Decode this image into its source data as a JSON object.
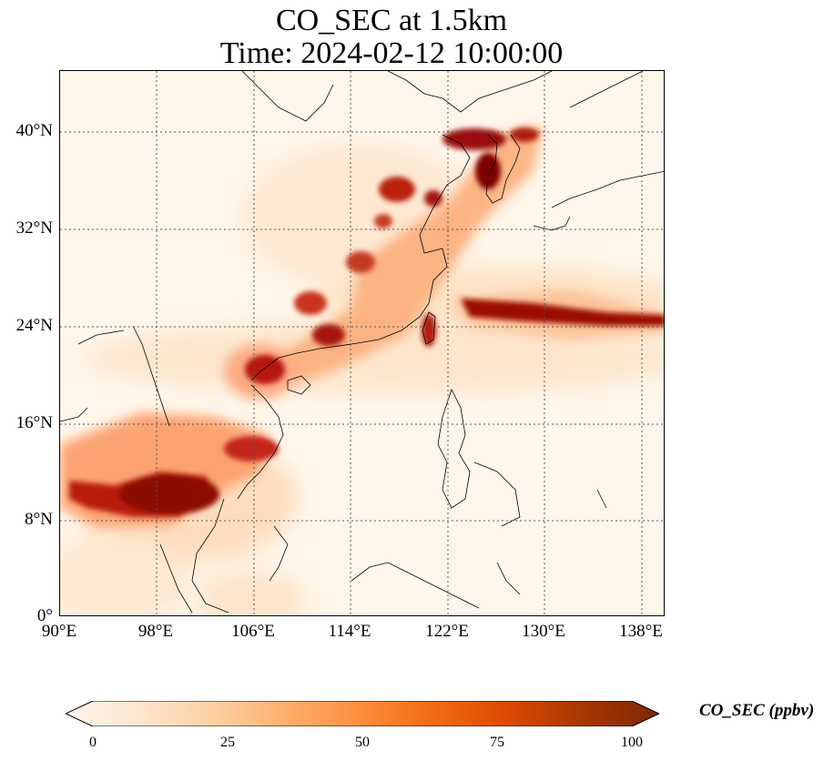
{
  "title": {
    "line1": "CO_SEC at 1.5km",
    "line2": "Time: 2024-02-12 10:00:00"
  },
  "map": {
    "lat_labels": [
      "40°N",
      "32°N",
      "24°N",
      "16°N",
      "8°N",
      "0°"
    ],
    "lon_labels": [
      "90°E",
      "98°E",
      "106°E",
      "114°E",
      "122°E",
      "130°E",
      "138°E"
    ],
    "lat_values": [
      40,
      32,
      24,
      16,
      8,
      0
    ],
    "lon_values": [
      90,
      98,
      106,
      114,
      122,
      130,
      138
    ],
    "lon_range": [
      90,
      140
    ],
    "lat_range": [
      0,
      45
    ],
    "gridlines": "dotted"
  },
  "colorbar": {
    "label": "CO_SEC (ppbv)",
    "ticks": [
      "0",
      "25",
      "50",
      "75",
      "100"
    ],
    "range": [
      0,
      100
    ],
    "colors": [
      "#fff5eb",
      "#fee6ce",
      "#fdd0a2",
      "#fdae6b",
      "#fd8d3c",
      "#f16913",
      "#d94801",
      "#a63603",
      "#7f2704"
    ],
    "extend": "both",
    "colormap": "OrRd"
  }
}
